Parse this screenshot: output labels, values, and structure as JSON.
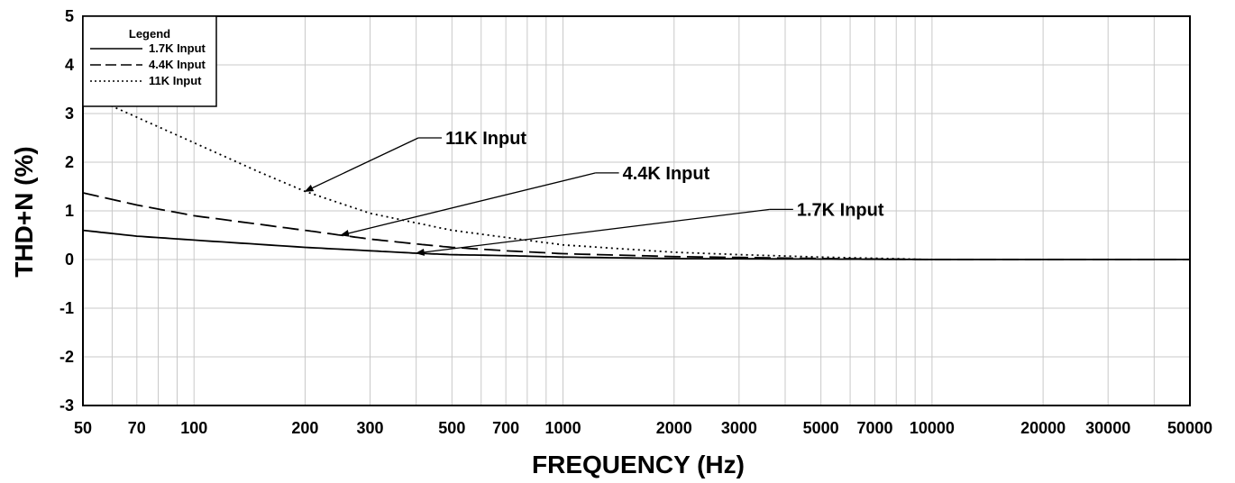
{
  "chart_data": {
    "type": "line",
    "xlabel": "FREQUENCY (Hz)",
    "ylabel": "THD+N (%)",
    "xscale": "log",
    "xlim": [
      50,
      50000
    ],
    "ylim": [
      -3,
      5
    ],
    "grid": true,
    "x_ticks": [
      50,
      70,
      100,
      200,
      300,
      500,
      700,
      1000,
      2000,
      3000,
      5000,
      7000,
      10000,
      20000,
      30000,
      50000
    ],
    "x_tick_labels": [
      "50",
      "70",
      "100",
      "200",
      "300",
      "500",
      "700",
      "1000",
      "2000",
      "3000",
      "5000",
      "7000",
      "10000",
      "20000",
      "30000",
      "50000"
    ],
    "y_ticks": [
      5,
      4,
      3,
      2,
      1,
      0,
      -1,
      -2,
      -3
    ],
    "y_tick_labels": [
      "5",
      "4",
      "3",
      "2",
      "1",
      "0",
      "-1",
      "-2",
      "-3"
    ],
    "legend": {
      "title": "Legend",
      "position": "top-left",
      "entries": [
        {
          "label": "1.7K Input",
          "style": "solid"
        },
        {
          "label": "4.4K Input",
          "style": "dashed"
        },
        {
          "label": "11K Input",
          "style": "dotted"
        }
      ]
    },
    "series": [
      {
        "name": "1.7K Input",
        "style": "solid",
        "points": [
          [
            50,
            0.6
          ],
          [
            70,
            0.48
          ],
          [
            100,
            0.4
          ],
          [
            200,
            0.25
          ],
          [
            300,
            0.18
          ],
          [
            400,
            0.13
          ],
          [
            500,
            0.1
          ],
          [
            700,
            0.08
          ],
          [
            1000,
            0.05
          ],
          [
            2000,
            0.02
          ],
          [
            5000,
            0.01
          ],
          [
            10000,
            0.0
          ],
          [
            50000,
            0.0
          ]
        ]
      },
      {
        "name": "4.4K Input",
        "style": "dashed",
        "points": [
          [
            50,
            1.37
          ],
          [
            70,
            1.12
          ],
          [
            100,
            0.9
          ],
          [
            200,
            0.6
          ],
          [
            250,
            0.5
          ],
          [
            300,
            0.42
          ],
          [
            400,
            0.32
          ],
          [
            500,
            0.25
          ],
          [
            700,
            0.18
          ],
          [
            1000,
            0.12
          ],
          [
            2000,
            0.06
          ],
          [
            5000,
            0.02
          ],
          [
            10000,
            0.0
          ],
          [
            50000,
            0.0
          ]
        ]
      },
      {
        "name": "11K Input",
        "style": "dotted",
        "points": [
          [
            50,
            3.5
          ],
          [
            60,
            3.15
          ],
          [
            100,
            2.4
          ],
          [
            150,
            1.8
          ],
          [
            200,
            1.4
          ],
          [
            300,
            0.95
          ],
          [
            500,
            0.6
          ],
          [
            1000,
            0.3
          ],
          [
            2000,
            0.15
          ],
          [
            3000,
            0.1
          ],
          [
            5000,
            0.05
          ],
          [
            10000,
            0.0
          ]
        ]
      }
    ],
    "annotations": [
      {
        "text": "11K Input",
        "label_x": 480,
        "label_y": 2.5,
        "arrow_to": [
          200,
          1.4
        ]
      },
      {
        "text": "4.4K Input",
        "label_x": 1450,
        "label_y": 1.78,
        "arrow_to": [
          250,
          0.5
        ]
      },
      {
        "text": "1.7K Input",
        "label_x": 4300,
        "label_y": 1.03,
        "arrow_to": [
          400,
          0.13
        ]
      }
    ]
  }
}
